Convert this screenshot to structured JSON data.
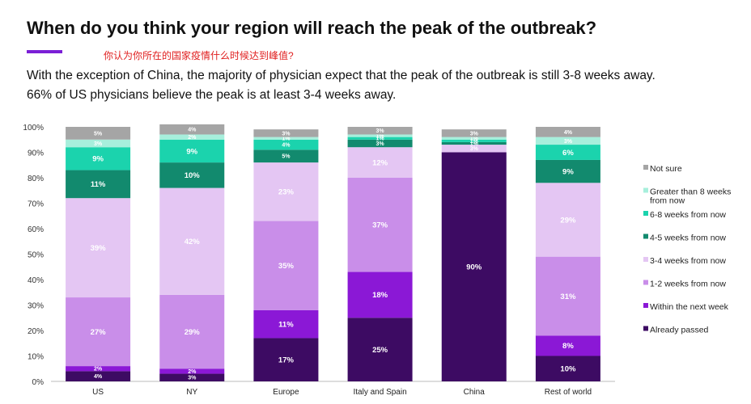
{
  "header": {
    "title": "When do you think your region will reach the peak of the outbreak?",
    "subtitle_cn": "你认为你所在的国家疫情什么时候达到峰值?",
    "desc_line1": "With the exception of China, the majority of physician expect that the peak of the outbreak is still 3-8 weeks away.",
    "desc_line2": "66% of US physicians believe the peak is at least 3-4 weeks away."
  },
  "chart_data": {
    "type": "bar",
    "stacked": true,
    "categories": [
      "US",
      "NY",
      "Europe",
      "Italy and Spain",
      "China",
      "Rest of world"
    ],
    "ylim": [
      0,
      100
    ],
    "yticks": [
      "0%",
      "10%",
      "20%",
      "30%",
      "40%",
      "50%",
      "60%",
      "70%",
      "80%",
      "90%",
      "100%"
    ],
    "legend_position": "right",
    "series": [
      {
        "name": "Already passed",
        "color": "#3d0b63",
        "label_color": "#ffffff",
        "values": [
          4,
          3,
          17,
          25,
          90,
          10
        ],
        "labels": [
          "4%",
          "3%",
          "17%",
          "25%",
          "90%",
          "10%"
        ]
      },
      {
        "name": "Within the next week",
        "color": "#8b18d6",
        "label_color": "#ffffff",
        "values": [
          2,
          2,
          11,
          18,
          0,
          8
        ],
        "labels": [
          "2%",
          "2%",
          "11%",
          "18%",
          "",
          "8%"
        ]
      },
      {
        "name": "1-2 weeks from now",
        "color": "#c98ee9",
        "label_color": "#ffffff",
        "values": [
          27,
          29,
          35,
          37,
          0,
          31
        ],
        "labels": [
          "27%",
          "29%",
          "35%",
          "37%",
          "",
          "31%"
        ]
      },
      {
        "name": "3-4 weeks from now",
        "color": "#e4c6f3",
        "label_color": "#ffffff",
        "values": [
          39,
          42,
          23,
          12,
          3,
          29
        ],
        "labels": [
          "39%",
          "42%",
          "23%",
          "12%",
          "3%",
          "29%"
        ]
      },
      {
        "name": "4-5 weeks from now",
        "color": "#128a6e",
        "label_color": "#ffffff",
        "values": [
          11,
          10,
          5,
          3,
          1,
          9
        ],
        "labels": [
          "11%",
          "10%",
          "5%",
          "3%",
          "1%",
          "9%"
        ]
      },
      {
        "name": "6-8 weeks from now",
        "color": "#1bd3ad",
        "label_color": "#ffffff",
        "values": [
          9,
          9,
          4,
          1,
          1,
          6
        ],
        "labels": [
          "9%",
          "9%",
          "4%",
          "1%",
          "1%",
          "6%"
        ]
      },
      {
        "name": "Greater than 8 weeks from now",
        "color": "#a7efdc",
        "label_color": "#ffffff",
        "values": [
          3,
          2,
          1,
          1,
          1,
          3
        ],
        "labels": [
          "3%",
          "2%",
          "1%",
          "1%",
          "1%",
          "3%"
        ]
      },
      {
        "name": "Not sure",
        "color": "#a5a5a5",
        "label_color": "#ffffff",
        "values": [
          5,
          4,
          3,
          3,
          3,
          4
        ],
        "labels": [
          "5%",
          "4%",
          "3%",
          "3%",
          "3%",
          "4%"
        ]
      }
    ],
    "legend_order": [
      "Not sure",
      "Greater than 8 weeks from now",
      "6-8 weeks from now",
      "4-5 weeks from now",
      "3-4 weeks from now",
      "1-2 weeks from now",
      "Within the next week",
      "Already passed"
    ],
    "legend_lines": {
      "Greater than 8 weeks from now": [
        "Greater than 8 weeks",
        "from now"
      ]
    }
  }
}
